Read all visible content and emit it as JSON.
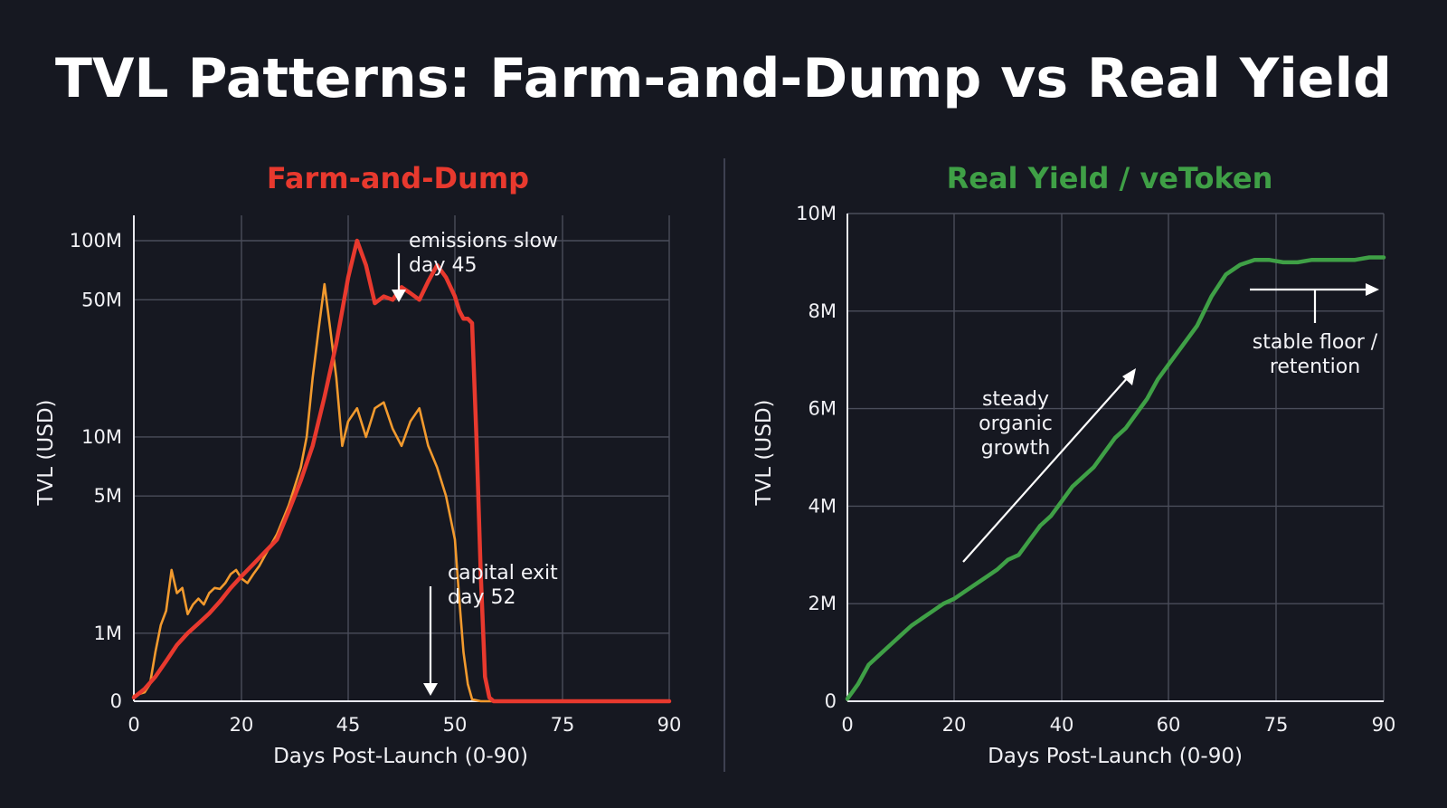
{
  "title": "TVL Patterns: Farm-and-Dump vs Real Yield",
  "chart_data": [
    {
      "type": "line",
      "title": "Farm-and-Dump",
      "title_color": "#e8392e",
      "xlabel": "Days Post-Launch (0-90)",
      "ylabel": "TVL (USD)",
      "y_scale": "log",
      "x_tick_labels": [
        "0",
        "20",
        "45",
        "50",
        "75",
        "90"
      ],
      "y_ticks": [
        {
          "label": "0",
          "value": 0.45
        },
        {
          "label": "1M",
          "value": 1
        },
        {
          "label": "5M",
          "value": 5
        },
        {
          "label": "10M",
          "value": 10
        },
        {
          "label": "50M",
          "value": 50
        },
        {
          "label": "100M",
          "value": 100
        }
      ],
      "grid": true,
      "series": [
        {
          "color": "#e8392e",
          "points": [
            [
              0,
              0.47
            ],
            [
              2,
              0.52
            ],
            [
              4,
              0.6
            ],
            [
              6,
              0.72
            ],
            [
              8,
              0.87
            ],
            [
              10,
              1.0
            ],
            [
              12,
              1.12
            ],
            [
              14,
              1.26
            ],
            [
              16,
              1.45
            ],
            [
              18,
              1.7
            ],
            [
              20,
              1.95
            ],
            [
              22,
              2.25
            ],
            [
              24,
              2.6
            ],
            [
              26,
              3.0
            ],
            [
              28,
              4.2
            ],
            [
              30,
              6.0
            ],
            [
              32,
              9.0
            ],
            [
              34,
              16
            ],
            [
              36,
              30
            ],
            [
              38,
              65
            ],
            [
              39,
              100
            ],
            [
              40,
              75
            ],
            [
              41,
              48
            ],
            [
              42,
              52
            ],
            [
              43,
              50
            ],
            [
              44,
              58
            ],
            [
              45,
              54
            ],
            [
              46,
              50
            ],
            [
              47,
              62
            ],
            [
              48,
              75
            ],
            [
              49,
              65
            ],
            [
              50,
              52
            ],
            [
              51,
              44
            ],
            [
              52,
              40
            ],
            [
              53,
              40
            ],
            [
              54,
              38
            ],
            [
              55,
              10
            ],
            [
              56,
              2
            ],
            [
              57,
              0.6
            ],
            [
              58,
              0.47
            ],
            [
              59,
              0.45
            ],
            [
              90,
              0.45
            ]
          ]
        },
        {
          "color": "#f29a2e",
          "points": [
            [
              0,
              0.48
            ],
            [
              2,
              0.5
            ],
            [
              3,
              0.55
            ],
            [
              4,
              0.8
            ],
            [
              5,
              1.1
            ],
            [
              6,
              1.3
            ],
            [
              7,
              2.1
            ],
            [
              8,
              1.6
            ],
            [
              9,
              1.7
            ],
            [
              10,
              1.25
            ],
            [
              11,
              1.4
            ],
            [
              12,
              1.5
            ],
            [
              13,
              1.4
            ],
            [
              14,
              1.6
            ],
            [
              15,
              1.7
            ],
            [
              16,
              1.68
            ],
            [
              17,
              1.8
            ],
            [
              18,
              2.0
            ],
            [
              19,
              2.1
            ],
            [
              20,
              1.9
            ],
            [
              21,
              1.8
            ],
            [
              22,
              2.0
            ],
            [
              23,
              2.2
            ],
            [
              24,
              2.5
            ],
            [
              26,
              3.2
            ],
            [
              28,
              4.5
            ],
            [
              30,
              7.0
            ],
            [
              31,
              10
            ],
            [
              32,
              20
            ],
            [
              33,
              35
            ],
            [
              34,
              60
            ],
            [
              35,
              35
            ],
            [
              36,
              20
            ],
            [
              37,
              9
            ],
            [
              38,
              12
            ],
            [
              39,
              14
            ],
            [
              40,
              10
            ],
            [
              41,
              14
            ],
            [
              42,
              15
            ],
            [
              43,
              11
            ],
            [
              44,
              9
            ],
            [
              45,
              12
            ],
            [
              46,
              14
            ],
            [
              47,
              9
            ],
            [
              48,
              7
            ],
            [
              49,
              5
            ],
            [
              50,
              3
            ],
            [
              51,
              1.5
            ],
            [
              52,
              0.8
            ],
            [
              53,
              0.55
            ],
            [
              54,
              0.46
            ],
            [
              56,
              0.45
            ],
            [
              90,
              0.45
            ]
          ]
        }
      ],
      "annotations": [
        {
          "lines": [
            "emissions slow",
            "day 45"
          ],
          "x": 45,
          "y": 40
        },
        {
          "lines": [
            "capital exit",
            "day 52"
          ],
          "x": 52,
          "y": 0.45
        }
      ]
    },
    {
      "type": "line",
      "title": "Real Yield / veToken",
      "title_color": "#3fa046",
      "xlabel": "Days Post-Launch (0-90)",
      "ylabel": "TVL (USD)",
      "y_scale": "linear",
      "ylim": [
        0,
        10
      ],
      "x_ticks": [
        0,
        20,
        40,
        60,
        75,
        90
      ],
      "y_ticks": [
        {
          "label": "0",
          "value": 0
        },
        {
          "label": "2M",
          "value": 2
        },
        {
          "label": "4M",
          "value": 4
        },
        {
          "label": "6M",
          "value": 6
        },
        {
          "label": "8M",
          "value": 8
        },
        {
          "label": "10M",
          "value": 10
        }
      ],
      "grid": true,
      "series": [
        {
          "color": "#3fa046",
          "points": [
            [
              0,
              0.05
            ],
            [
              2,
              0.35
            ],
            [
              4,
              0.75
            ],
            [
              6,
              0.95
            ],
            [
              8,
              1.15
            ],
            [
              10,
              1.35
            ],
            [
              12,
              1.55
            ],
            [
              14,
              1.7
            ],
            [
              16,
              1.85
            ],
            [
              18,
              2.0
            ],
            [
              20,
              2.1
            ],
            [
              22,
              2.25
            ],
            [
              24,
              2.4
            ],
            [
              26,
              2.55
            ],
            [
              28,
              2.7
            ],
            [
              30,
              2.9
            ],
            [
              32,
              3.0
            ],
            [
              34,
              3.3
            ],
            [
              36,
              3.6
            ],
            [
              38,
              3.8
            ],
            [
              40,
              4.1
            ],
            [
              42,
              4.4
            ],
            [
              44,
              4.6
            ],
            [
              46,
              4.8
            ],
            [
              48,
              5.1
            ],
            [
              50,
              5.4
            ],
            [
              52,
              5.6
            ],
            [
              54,
              5.9
            ],
            [
              56,
              6.2
            ],
            [
              58,
              6.6
            ],
            [
              60,
              6.9
            ],
            [
              62,
              7.3
            ],
            [
              64,
              7.7
            ],
            [
              66,
              8.3
            ],
            [
              68,
              8.75
            ],
            [
              70,
              8.95
            ],
            [
              72,
              9.05
            ],
            [
              74,
              9.05
            ],
            [
              76,
              9.0
            ],
            [
              78,
              9.0
            ],
            [
              80,
              9.05
            ],
            [
              82,
              9.05
            ],
            [
              84,
              9.05
            ],
            [
              86,
              9.05
            ],
            [
              88,
              9.1
            ],
            [
              90,
              9.1
            ]
          ]
        }
      ],
      "annotations": [
        {
          "lines": [
            "steady",
            "organic",
            "growth"
          ]
        },
        {
          "lines": [
            "stable floor /",
            "retention"
          ]
        }
      ]
    }
  ]
}
